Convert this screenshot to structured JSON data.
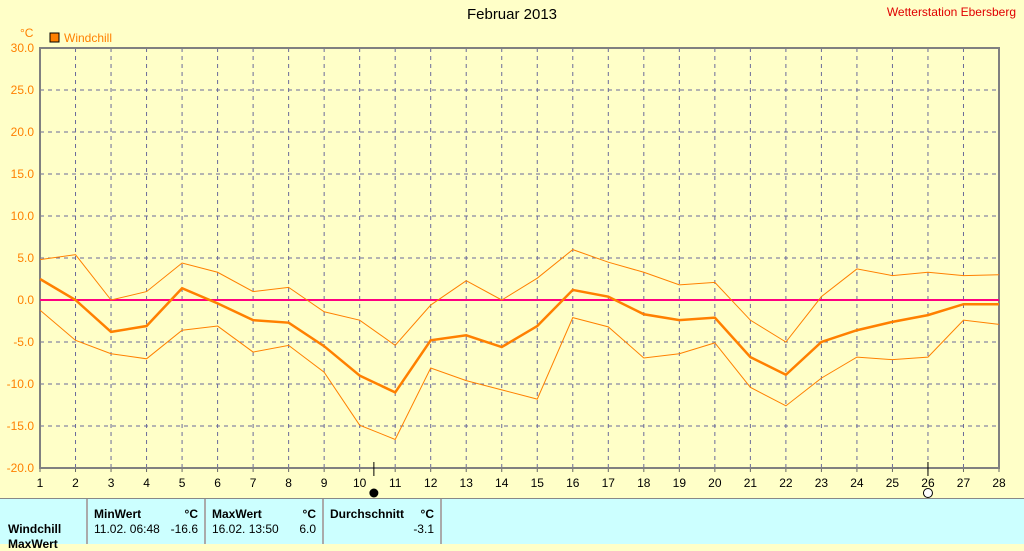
{
  "title": "Februar 2013",
  "station": "Wetterstation Ebersberg",
  "chart_data": {
    "type": "line",
    "title": "Februar 2013",
    "ylabel": "°C",
    "ylim": [
      -20,
      30
    ],
    "yticks": [
      "30.0",
      "25.0",
      "20.0",
      "15.0",
      "10.0",
      "5.0",
      "0.0",
      "-5.0",
      "-10.0",
      "-15.0",
      "-20.0"
    ],
    "x": [
      1,
      2,
      3,
      4,
      5,
      6,
      7,
      8,
      9,
      10,
      11,
      12,
      13,
      14,
      15,
      16,
      17,
      18,
      19,
      20,
      21,
      22,
      23,
      24,
      25,
      26,
      27,
      28
    ],
    "legend": [
      "Windchill"
    ],
    "grid": true,
    "series": [
      {
        "name": "Windchill max",
        "values": [
          4.8,
          5.4,
          0,
          1.0,
          4.4,
          3.3,
          1.0,
          1.5,
          -1.4,
          -2.4,
          -5.4,
          -0.6,
          2.3,
          0,
          2.6,
          6.0,
          4.5,
          3.3,
          1.8,
          2.1,
          -2.4,
          -5.0,
          0.4,
          3.7,
          2.9,
          3.3,
          2.9,
          3.0
        ]
      },
      {
        "name": "Windchill mean",
        "values": [
          2.5,
          0,
          -3.8,
          -3.1,
          1.4,
          -0.4,
          -2.4,
          -2.7,
          -5.5,
          -9.0,
          -11.0,
          -4.8,
          -4.2,
          -5.6,
          -3.1,
          1.2,
          0.4,
          -1.7,
          -2.4,
          -2.1,
          -6.8,
          -8.9,
          -5.0,
          -3.6,
          -2.6,
          -1.8,
          -0.5,
          -0.5
        ]
      },
      {
        "name": "Windchill min",
        "values": [
          -1.2,
          -4.8,
          -6.4,
          -7.0,
          -3.6,
          -3.1,
          -6.2,
          -5.4,
          -8.6,
          -14.9,
          -16.6,
          -8.1,
          -9.6,
          -10.7,
          -11.8,
          -2.1,
          -3.2,
          -6.9,
          -6.4,
          -5.1,
          -10.4,
          -12.6,
          -9.3,
          -6.8,
          -7.1,
          -6.8,
          -2.4,
          -2.9
        ]
      }
    ],
    "colors": {
      "series": "#ff8000",
      "zero": "#ff0080",
      "grid": "#6a6a9a"
    },
    "markers": {
      "min_day": 10.4,
      "max_day": 26
    }
  },
  "table": {
    "row_label": "Windchill",
    "row2_label": "MaxWert",
    "min": {
      "head": "MinWert",
      "unit": "°C",
      "date": "11.02.  06:48",
      "value": "-16.6"
    },
    "max": {
      "head": "MaxWert",
      "unit": "°C",
      "date": "16.02.  13:50",
      "value": "6.0"
    },
    "avg": {
      "head": "Durchschnitt",
      "unit": "°C",
      "value": "-3.1"
    }
  }
}
